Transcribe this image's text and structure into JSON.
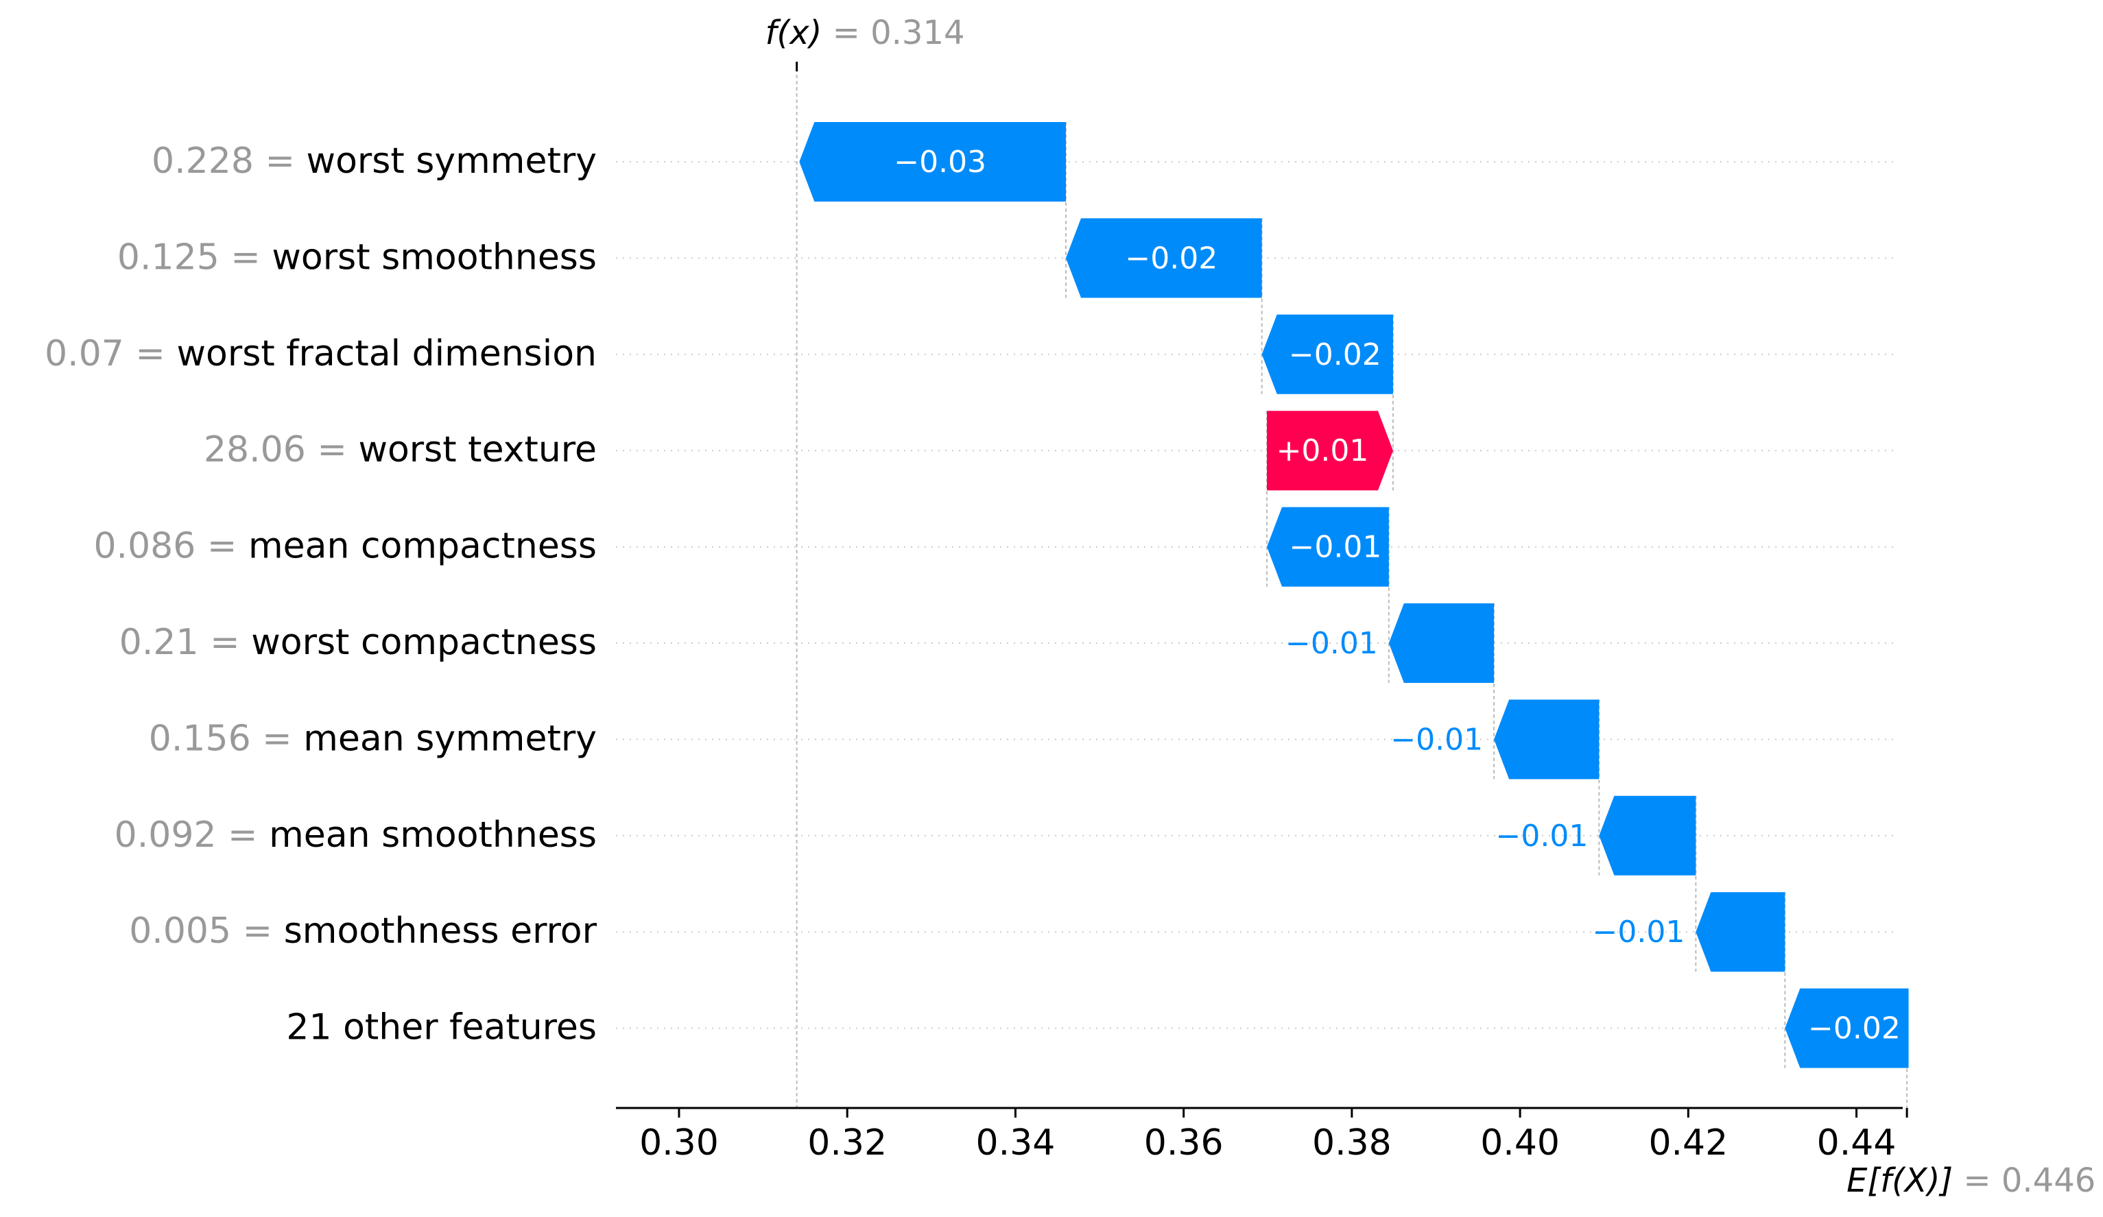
{
  "chart_data": {
    "type": "waterfall",
    "fx": {
      "label": "f(x)",
      "eq": " = ",
      "value": "0.314",
      "x": 0.314
    },
    "ex": {
      "label": "E[f(X)]",
      "eq": " = ",
      "value": "0.446",
      "x": 0.446
    },
    "xlim": [
      0.2925,
      0.4455
    ],
    "xticks": [
      {
        "value": 0.3,
        "label": "0.30"
      },
      {
        "value": 0.32,
        "label": "0.32"
      },
      {
        "value": 0.34,
        "label": "0.34"
      },
      {
        "value": 0.36,
        "label": "0.36"
      },
      {
        "value": 0.38,
        "label": "0.38"
      },
      {
        "value": 0.4,
        "label": "0.40"
      },
      {
        "value": 0.42,
        "label": "0.42"
      },
      {
        "value": 0.44,
        "label": "0.44"
      }
    ],
    "features": [
      {
        "value": "0.228",
        "eq": " = ",
        "name": "worst symmetry",
        "start": 0.346,
        "end": 0.3143,
        "label": "−0.03",
        "inside": true
      },
      {
        "value": "0.125",
        "eq": " = ",
        "name": "worst smoothness",
        "start": 0.3693,
        "end": 0.346,
        "label": "−0.02",
        "inside": true
      },
      {
        "value": "0.07",
        "eq": " = ",
        "name": "worst fractal dimension",
        "start": 0.3849,
        "end": 0.3693,
        "label": "−0.02",
        "inside": true
      },
      {
        "value": "28.06",
        "eq": " = ",
        "name": "worst texture",
        "start": 0.3699,
        "end": 0.3849,
        "label": "+0.01",
        "inside": true
      },
      {
        "value": "0.086",
        "eq": " = ",
        "name": "mean compactness",
        "start": 0.3844,
        "end": 0.3699,
        "label": "−0.01",
        "inside": true
      },
      {
        "value": "0.21",
        "eq": " = ",
        "name": "worst compactness",
        "start": 0.3969,
        "end": 0.3844,
        "label": "−0.01",
        "inside": false
      },
      {
        "value": "0.156",
        "eq": " = ",
        "name": "mean symmetry",
        "start": 0.4094,
        "end": 0.3969,
        "label": "−0.01",
        "inside": false
      },
      {
        "value": "0.092",
        "eq": " = ",
        "name": "mean smoothness",
        "start": 0.4209,
        "end": 0.4094,
        "label": "−0.01",
        "inside": false
      },
      {
        "value": "0.005",
        "eq": " = ",
        "name": "smoothness error",
        "start": 0.4315,
        "end": 0.4209,
        "label": "−0.01",
        "inside": false
      },
      {
        "value": "",
        "eq": "",
        "name": "21 other features",
        "start": 0.4462,
        "end": 0.4315,
        "label": "−0.02",
        "inside": true
      }
    ],
    "colors": {
      "negative": "#008bfb",
      "positive": "#ff0051",
      "value_text": "#999999",
      "label_text": "#000000",
      "grid": "#cccccc",
      "guide": "#bbbbbb",
      "axis": "#000000"
    }
  }
}
